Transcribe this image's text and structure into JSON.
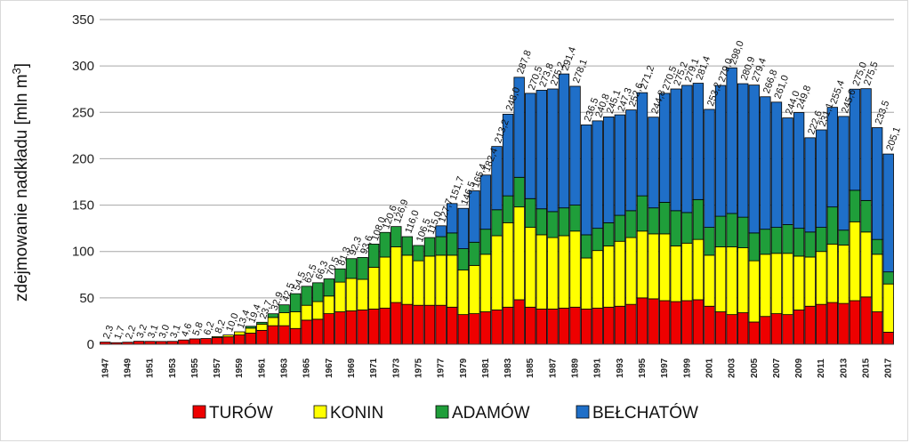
{
  "chart_data": {
    "type": "stacked-bar",
    "ylabel": "zdejmowanie nadkładu [mln m",
    "ylabel_sup": "3",
    "ylabel_end": "]",
    "ylim": [
      0,
      350
    ],
    "yticks": [
      0,
      50,
      100,
      150,
      200,
      250,
      300,
      350
    ],
    "grid": true,
    "legend_position": "bottom",
    "years": [
      1947,
      1948,
      1949,
      1950,
      1951,
      1952,
      1953,
      1954,
      1955,
      1956,
      1957,
      1958,
      1959,
      1960,
      1961,
      1962,
      1963,
      1964,
      1965,
      1966,
      1967,
      1968,
      1969,
      1970,
      1971,
      1972,
      1973,
      1974,
      1975,
      1976,
      1977,
      1978,
      1979,
      1980,
      1981,
      1982,
      1983,
      1984,
      1985,
      1986,
      1987,
      1988,
      1989,
      1990,
      1991,
      1992,
      1993,
      1994,
      1995,
      1996,
      1997,
      1998,
      1999,
      2000,
      2001,
      2002,
      2003,
      2004,
      2005,
      2006,
      2007,
      2008,
      2009,
      2010,
      2011,
      2012,
      2013,
      2014,
      2015,
      2016,
      2017
    ],
    "x_tick_labels": [
      "1947",
      "1949",
      "1951",
      "1953",
      "1955",
      "1957",
      "1959",
      "1961",
      "1963",
      "1965",
      "1967",
      "1969",
      "1971",
      "1973",
      "1975",
      "1977",
      "1979",
      "1981",
      "1983",
      "1985",
      "1987",
      "1989",
      "1991",
      "1993",
      "1995",
      "1997",
      "1999",
      "2001",
      "2003",
      "2005",
      "2007",
      "2009",
      "2011",
      "2013",
      "2015",
      "2017"
    ],
    "totals": [
      "2,3",
      "1,7",
      "2,2",
      "3,2",
      "3,1",
      "3,0",
      "3,1",
      "4,6",
      "5,8",
      "6,2",
      "8,2",
      "10,0",
      "13,4",
      "19,4",
      "23,7",
      "32,9",
      "42,5",
      "54,5",
      "62,5",
      "66,3",
      "70,5",
      "81,3",
      "92,3",
      "93,6",
      "108,0",
      "120,6",
      "126,9",
      "116,0",
      "106,5",
      "115,0",
      "127,7",
      "151,7",
      "146,5",
      "165,4",
      "182,4",
      "213,2",
      "248,0",
      "287,8",
      "270,5",
      "273,8",
      "275,2",
      "291,4",
      "278,1",
      "236,5",
      "240,8",
      "245,1",
      "247,3",
      "252,6",
      "271,2",
      "244,8",
      "270,5",
      "275,2",
      "279,1",
      "281,4",
      "253,2",
      "279,0",
      "298,0",
      "280,9",
      "279,4",
      "266,8",
      "261,0",
      "244,0",
      "249,8",
      "222,6",
      "231,1",
      "255,4",
      "245,6",
      "275,0",
      "275,5",
      "233,5",
      "205,1"
    ],
    "totals_numeric": [
      2.3,
      1.7,
      2.2,
      3.2,
      3.1,
      3.0,
      3.1,
      4.6,
      5.8,
      6.2,
      8.2,
      10.0,
      13.4,
      19.4,
      23.7,
      32.9,
      42.5,
      54.5,
      62.5,
      66.3,
      70.5,
      81.3,
      92.3,
      93.6,
      108.0,
      120.6,
      126.9,
      116.0,
      106.5,
      115.0,
      127.7,
      151.7,
      146.5,
      165.4,
      182.4,
      213.2,
      248.0,
      287.8,
      270.5,
      273.8,
      275.2,
      291.4,
      278.1,
      236.5,
      240.8,
      245.1,
      247.3,
      252.6,
      271.2,
      244.8,
      270.5,
      275.2,
      279.1,
      281.4,
      253.2,
      279.0,
      298.0,
      280.9,
      279.4,
      266.8,
      261.0,
      244.0,
      249.8,
      222.6,
      231.1,
      255.4,
      245.6,
      275.0,
      275.5,
      233.5,
      205.1
    ],
    "series": [
      {
        "name": "TURÓW",
        "color": "#ee0000",
        "values": [
          2.3,
          1.7,
          2.2,
          3.2,
          3.1,
          3.0,
          3.1,
          4.6,
          5.8,
          6.2,
          7.2,
          8.0,
          10.0,
          12.0,
          15.0,
          20.0,
          20.0,
          17.0,
          26.0,
          27.0,
          33.0,
          35.0,
          36.0,
          37.0,
          38.0,
          39.0,
          45.0,
          43.0,
          42.0,
          42.0,
          42.0,
          40.0,
          32.0,
          33.0,
          35.0,
          37.0,
          40.0,
          48.0,
          40.0,
          38.0,
          38.0,
          39.0,
          40.0,
          38.0,
          39.0,
          40.0,
          41.0,
          43.0,
          50.0,
          49.0,
          47.0,
          46.0,
          47.0,
          48.0,
          41.0,
          35.0,
          32.0,
          34.0,
          24.0,
          30.0,
          33.0,
          32.0,
          37.0,
          41.0,
          43.0,
          45.0,
          44.0,
          47.0,
          51.0,
          35.0,
          13.0
        ]
      },
      {
        "name": "KONIN",
        "color": "#ffff00",
        "values": [
          0,
          0,
          0,
          0,
          0,
          0,
          0,
          0,
          0,
          0,
          1.0,
          2.0,
          3.4,
          5.4,
          6.7,
          8.9,
          14.0,
          18.0,
          16.0,
          19.0,
          19.0,
          32.0,
          35.0,
          33.0,
          45.0,
          55.0,
          60.0,
          53.0,
          48.0,
          53.0,
          54.0,
          56.0,
          48.0,
          52.0,
          62.0,
          80.0,
          91.0,
          100.0,
          86.0,
          80.0,
          77.0,
          78.0,
          82.0,
          55.0,
          62.0,
          66.0,
          70.0,
          72.0,
          72.0,
          70.0,
          72.0,
          60.0,
          62.0,
          65.0,
          55.0,
          70.0,
          73.0,
          70.0,
          66.0,
          67.0,
          65.0,
          66.0,
          58.0,
          53.0,
          57.0,
          63.0,
          63.0,
          85.0,
          70.0,
          62.0,
          52.0
        ]
      },
      {
        "name": "ADAMÓW",
        "color": "#1f9e3a",
        "values": [
          0,
          0,
          0,
          0,
          0,
          0,
          0,
          0,
          0,
          0,
          0,
          0,
          0,
          2.0,
          2.0,
          4.0,
          8.5,
          19.5,
          20.5,
          20.3,
          18.5,
          14.3,
          21.3,
          23.6,
          25.0,
          26.6,
          21.9,
          20.0,
          16.5,
          20.0,
          20.0,
          24.0,
          23.0,
          25.0,
          27.0,
          28.0,
          29.0,
          32.0,
          31.0,
          28.0,
          28.0,
          30.0,
          28.0,
          25.0,
          24.0,
          25.0,
          28.0,
          29.0,
          38.0,
          28.0,
          34.0,
          38.0,
          33.0,
          43.0,
          30.0,
          33.0,
          36.0,
          33.0,
          30.0,
          27.0,
          28.0,
          31.0,
          30.0,
          27.0,
          26.0,
          40.0,
          16.0,
          34.0,
          34.0,
          16.0,
          13.0
        ]
      },
      {
        "name": "BEŁCHATÓW",
        "color": "#1f6fc8",
        "values": [
          0,
          0,
          0,
          0,
          0,
          0,
          0,
          0,
          0,
          0,
          0,
          0,
          0,
          0,
          0,
          0,
          0,
          0,
          0,
          0,
          0,
          0,
          0,
          0,
          0,
          0,
          0,
          0,
          0,
          0,
          11.7,
          31.7,
          43.5,
          55.4,
          58.4,
          68.2,
          88.0,
          107.8,
          113.5,
          127.8,
          132.2,
          144.4,
          128.1,
          118.5,
          115.8,
          114.1,
          108.3,
          108.6,
          111.2,
          97.8,
          117.5,
          131.2,
          137.1,
          125.4,
          127.2,
          141.0,
          157.0,
          143.9,
          159.4,
          142.8,
          135.0,
          115.0,
          124.8,
          101.6,
          105.1,
          107.4,
          122.6,
          109.0,
          120.5,
          120.5,
          127.1
        ]
      }
    ]
  }
}
